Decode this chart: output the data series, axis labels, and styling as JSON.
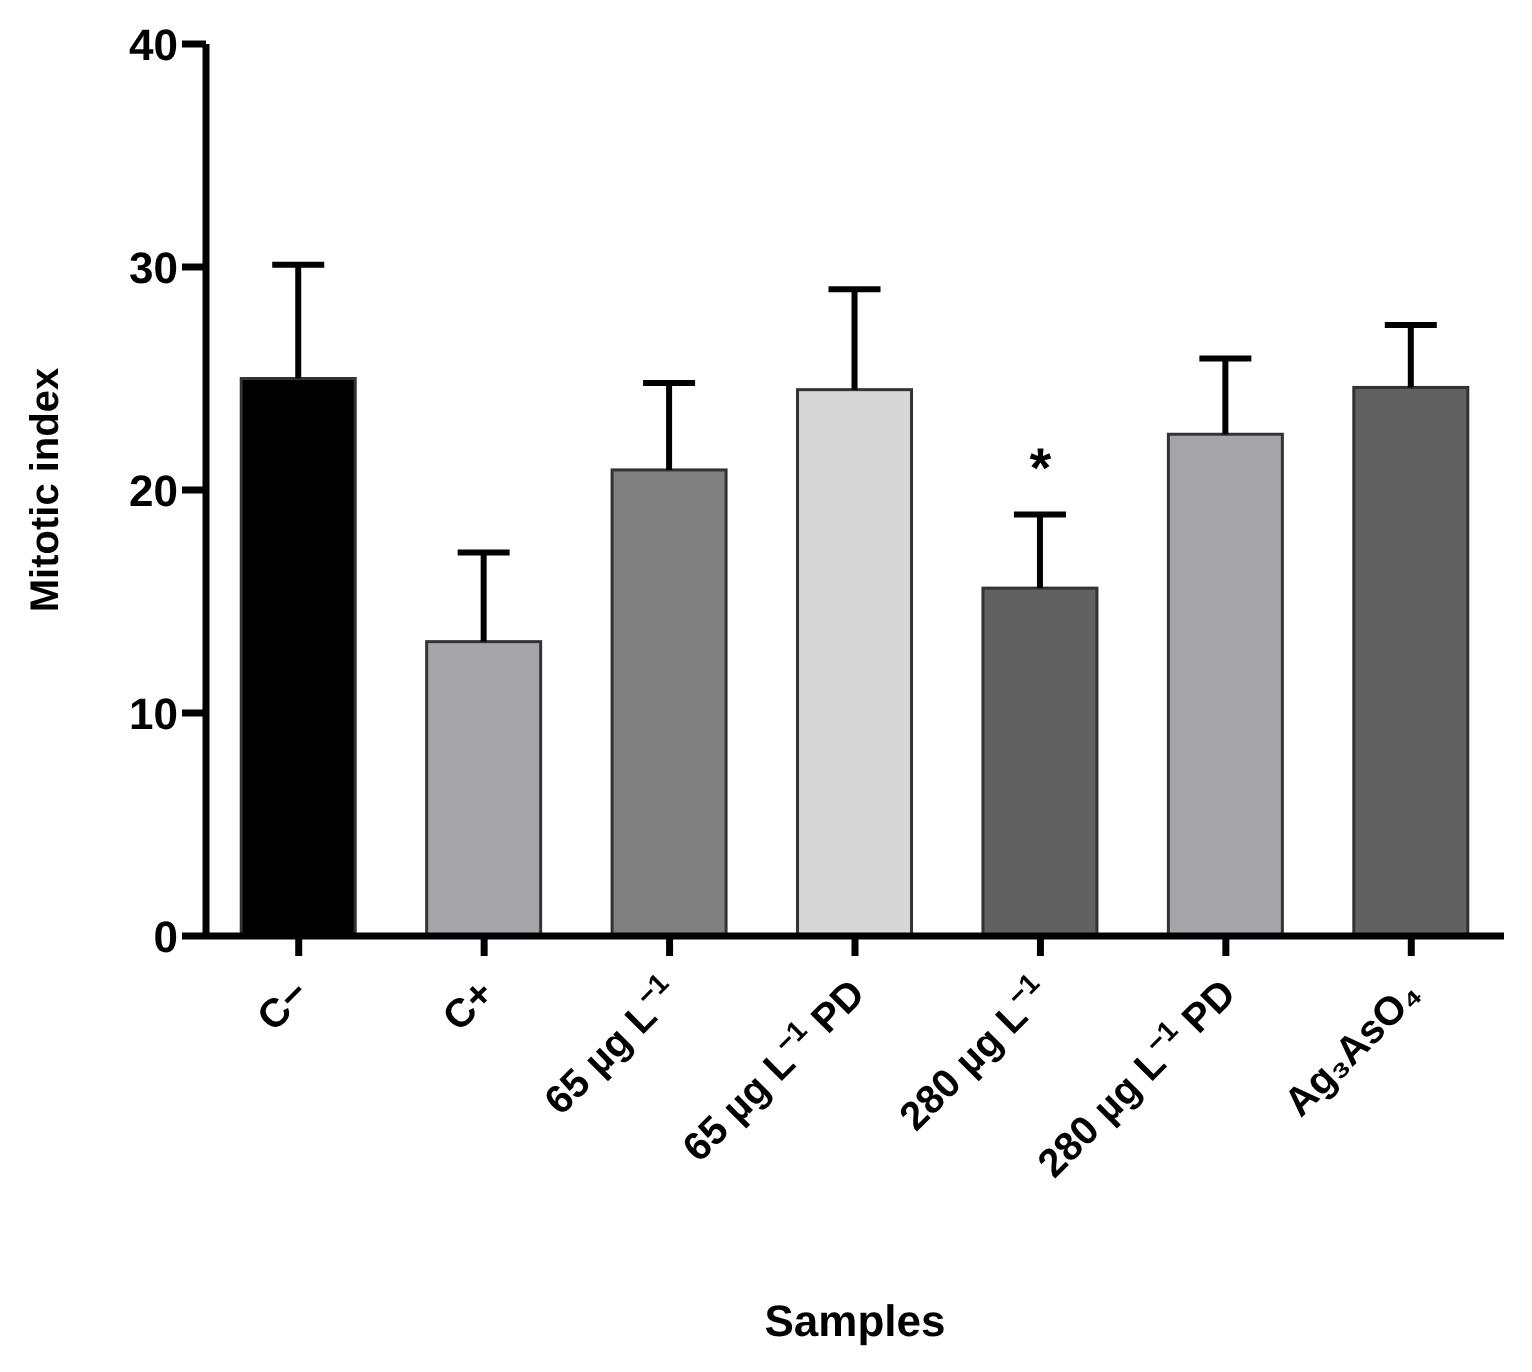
{
  "chart_data": {
    "type": "bar",
    "xlabel": "Samples",
    "ylabel": "Mitotic index",
    "categories": [
      "C−",
      "C+",
      "65 µg L$^{−1}$",
      "65 µg L$^{−1}$ PD",
      "280 µg L$^{−1}$",
      "280 µg L$^{−1}$ PD",
      "Ag₃AsO₄"
    ],
    "values": [
      25.0,
      13.2,
      20.9,
      24.5,
      15.6,
      22.5,
      24.6
    ],
    "errors": [
      [
        25.0,
        30.1
      ],
      [
        13.2,
        17.2
      ],
      [
        20.9,
        24.8
      ],
      [
        24.5,
        29.0
      ],
      [
        15.6,
        18.9
      ],
      [
        22.5,
        25.9
      ],
      [
        24.6,
        27.4
      ]
    ],
    "colors": [
      "#000000",
      "#a5a5a9",
      "#808080",
      "#d6d6d6",
      "#616161",
      "#a5a5a9",
      "#616161"
    ],
    "ylim": [
      0,
      40
    ],
    "yticks": [
      0,
      10,
      20,
      30,
      40
    ],
    "grid": false,
    "legend": false,
    "annotations": [
      {
        "text": "*",
        "x": "280 µg L$^{−1}$",
        "y": 18.9
      }
    ]
  }
}
